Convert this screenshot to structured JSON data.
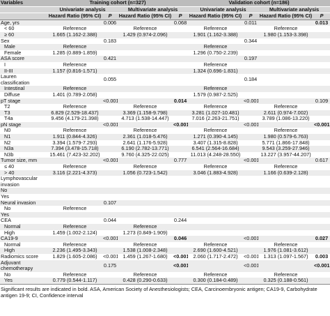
{
  "header": {
    "variables": "Variables",
    "training": "Training cohort (n=327)",
    "validation": "Validation cohort (n=186)",
    "univariate": "Univariate analysis",
    "multivariate": "Multivariate analysis",
    "hr": "Hazard Ratio (95% CI)",
    "p": "P"
  },
  "table": {
    "rows": [
      [
        "Age, yrs",
        null,
        "0.006",
        null,
        "0.068",
        null,
        "0.011",
        null,
        {
          "text": "0.013",
          "bold": true
        }
      ],
      [
        "< 60",
        "Reference",
        null,
        "Reference",
        null,
        "Reference",
        null,
        "Reference",
        null
      ],
      [
        "≥ 60",
        "1.665 (1.162-2.388)",
        null,
        "1.429 (0.974-2.096)",
        null,
        "1.901 (1.162-3.388)",
        null,
        "1.980 (1.153-3.398)",
        null
      ],
      [
        "Sex",
        null,
        "0.183",
        null,
        null,
        null,
        "0.344",
        null,
        null
      ],
      [
        "Male",
        "Reference",
        null,
        null,
        null,
        "Reference",
        null,
        null,
        null
      ],
      [
        "Female",
        "1.285 (0.889-1.859)",
        null,
        null,
        null,
        "1.296 (0.750-2.239)",
        null,
        null,
        null
      ],
      [
        "ASA score",
        null,
        "0.421",
        null,
        null,
        null,
        "0.197",
        null,
        null
      ],
      [
        "I",
        "Reference",
        null,
        null,
        null,
        "Reference",
        null,
        null,
        null
      ],
      [
        "II-III",
        "1.157 (0.816-1.571)",
        null,
        null,
        null,
        "1.324 (0.696-1.831)",
        null,
        null,
        null
      ],
      [
        "Lauren classification",
        null,
        "0.055",
        null,
        null,
        null,
        "0.184",
        null,
        null
      ],
      [
        "Intestinal",
        "Reference",
        null,
        null,
        null,
        "Reference",
        null,
        null,
        null
      ],
      [
        "Diffuse",
        "1.401 (0.789-2.058)",
        null,
        null,
        null,
        "1.579 (0.987-2.525)",
        null,
        null,
        null
      ],
      [
        "pT stage",
        null,
        "<0.001",
        null,
        {
          "text": "0.014",
          "bold": true
        },
        null,
        "<0.001",
        null,
        "0.109"
      ],
      [
        "T2",
        "Reference",
        null,
        "Reference",
        null,
        "Reference",
        null,
        "Reference",
        null
      ],
      [
        "T3",
        "6.829 (2.529-18.437)",
        null,
        "3.369 (1.158-9.798)",
        null,
        "3.281 (1.027-10.481)",
        null,
        "2.611 (0.974-7.002)",
        null
      ],
      [
        "T4a",
        "9.456 (4.179-21.398)",
        null,
        "4.713 (1.538-14.447)",
        null,
        "7.016 (2.263-21.751)",
        null,
        "3.789 (1.086-13.220)",
        null
      ],
      [
        "pN stage",
        null,
        "<0.001",
        null,
        {
          "text": "<0.001",
          "bold": true
        },
        null,
        "<0.001",
        null,
        {
          "text": "<0.001",
          "bold": true
        }
      ],
      [
        "N0",
        "Reference",
        null,
        "Reference",
        null,
        "Reference",
        null,
        "Reference",
        null
      ],
      [
        "N1",
        "1.911 (0.844-4.326)",
        null,
        "2.361 (1.018-5.476)",
        null,
        "1.271 (0.390-4.145)",
        null,
        "1.980 (0.579-6.763)",
        null
      ],
      [
        "N2",
        "3.394 (1.579-7.293)",
        null,
        "2.641 (1.176-5.928)",
        null,
        "3.407 (1.315-8.828)",
        null,
        "5.771 (1.866-17.848)",
        null
      ],
      [
        "N3a",
        "7.394 (3.478-15.718)",
        null,
        "6.190 (2.782-13.771)",
        null,
        "6.541 (2.564-16.684)",
        null,
        "9.543 (3.259-27.946)",
        null
      ],
      [
        "N3b",
        "15.461 (7.423-32.202)",
        null,
        "9.760 (4.325-22.025)",
        null,
        "11.013 (4.248-28.550)",
        null,
        "13.227 (3.957-44.207)",
        null
      ],
      [
        "Tumor size, mm",
        null,
        "<0.001",
        null,
        "0.777",
        null,
        "<0.001",
        null,
        "0.617"
      ],
      [
        "≤ 40",
        "Reference",
        null,
        "Reference",
        null,
        "Reference",
        null,
        "Reference",
        null
      ],
      [
        "> 40",
        "3.116 (2.221-4.373)",
        null,
        "1.056 (0.723-1.542)",
        null,
        "3.046 (1.883-4.928)",
        null,
        "1.166 (0.639-2.128)",
        null
      ],
      [
        "Lymphovascular invasion",
        null,
        null,
        null,
        null,
        null,
        null,
        null,
        null
      ],
      [
        "No",
        null,
        null,
        null,
        null,
        null,
        null,
        null,
        null
      ],
      [
        "Yes",
        null,
        null,
        null,
        null,
        null,
        null,
        null,
        null
      ],
      [
        "Neural invasion",
        null,
        "0.107",
        null,
        null,
        null,
        null,
        null,
        null
      ],
      [
        "No",
        "Reference",
        null,
        null,
        null,
        null,
        null,
        null,
        null
      ],
      [
        "Yes",
        null,
        null,
        null,
        null,
        null,
        null,
        null,
        null
      ],
      [
        "CEA",
        null,
        "0.044",
        null,
        "0.244",
        null,
        null,
        null,
        null
      ],
      [
        "Normal",
        "Reference",
        null,
        "Reference",
        null,
        null,
        null,
        null,
        null
      ],
      [
        "High",
        "1.459 (1.002-2.124)",
        null,
        "1.273 (0.849-1.909)",
        null,
        null,
        null,
        null,
        null
      ],
      [
        "CA19-9",
        null,
        "<0.001",
        null,
        {
          "text": "0.046",
          "bold": true
        },
        null,
        "<0.001",
        null,
        {
          "text": "0.027",
          "bold": true
        }
      ],
      [
        "Normal",
        "Reference",
        null,
        "Reference",
        null,
        "Reference",
        null,
        "Reference",
        null
      ],
      [
        "High",
        "2.236 (1.495-3.343)",
        null,
        "1.538 (1.008-2.348)",
        null,
        "2.690 (1.600-4.521)",
        null,
        "1.976 (1.081-3.612)",
        null
      ],
      [
        "Radiomics score",
        "1.829 (1.605-2.086)",
        "<0.001",
        "1.459 (1.267-1.680)",
        {
          "text": "<0.001",
          "bold": true
        },
        "2.060 (1.717-2.472)",
        "<0.001",
        "1.313 (1.097-1.567)",
        {
          "text": "0.003",
          "bold": true
        }
      ],
      [
        "Adjuvant chemotherapy",
        null,
        "0.175",
        null,
        {
          "text": "<0.001",
          "bold": true
        },
        null,
        "<0.001",
        null,
        {
          "text": "<0.001",
          "bold": true
        }
      ],
      [
        "No",
        "Reference",
        null,
        "Reference",
        null,
        "Reference",
        null,
        "Reference",
        null
      ],
      [
        "Yes",
        "0.779 (0.544-1.117)",
        null,
        "0.428 (0.290-0.633)",
        null,
        "0.300 (0.184-0.489)",
        null,
        "0.325 (0.188-0.561)",
        null
      ]
    ]
  },
  "footnote": "Significant results are indicated in bold. ASA, American Society of Anesthesiologists; CEA, Carcinoembryonic antigen; CA19-9, Carbohydrate antigen 19-9; CI, Confidence interval"
}
